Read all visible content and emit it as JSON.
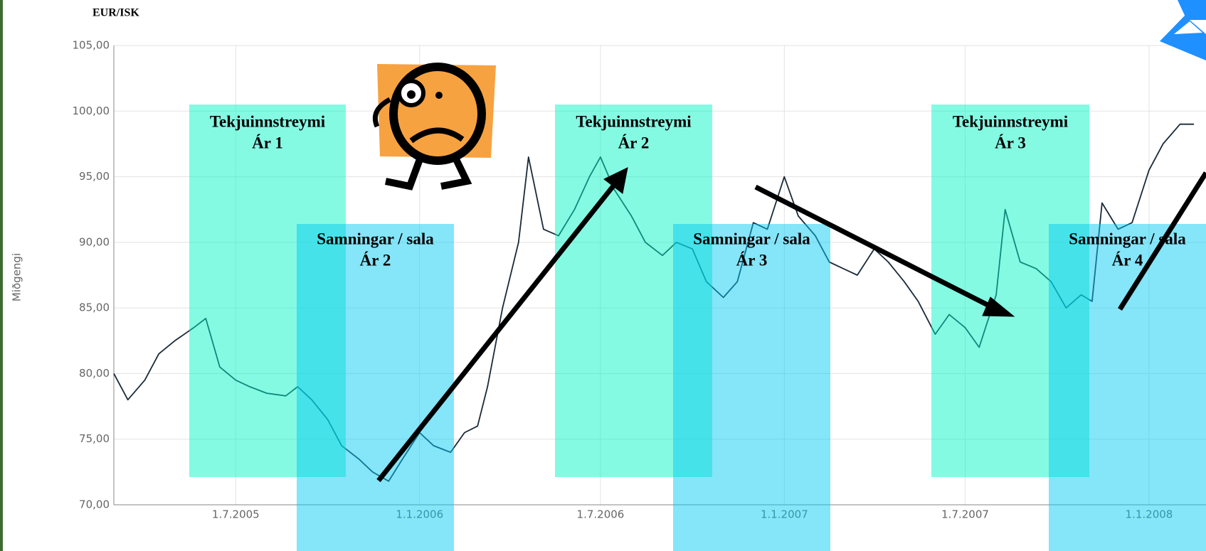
{
  "chart_data": {
    "type": "line",
    "title": "EUR/ISK",
    "y_label": "Miðgengi",
    "color": "#1a2a38",
    "x": [
      "2005-03-01",
      "2005-03-15",
      "2005-04-01",
      "2005-04-15",
      "2005-05-01",
      "2005-05-20",
      "2005-06-01",
      "2005-06-15",
      "2005-07-01",
      "2005-07-15",
      "2005-08-01",
      "2005-08-20",
      "2005-09-01",
      "2005-09-15",
      "2005-10-01",
      "2005-10-15",
      "2005-11-01",
      "2005-11-15",
      "2005-12-01",
      "2005-12-15",
      "2006-01-01",
      "2006-01-15",
      "2006-02-01",
      "2006-02-15",
      "2006-02-28",
      "2006-03-10",
      "2006-03-25",
      "2006-04-10",
      "2006-04-20",
      "2006-05-05",
      "2006-05-20",
      "2006-06-05",
      "2006-06-20",
      "2006-07-01",
      "2006-07-15",
      "2006-08-01",
      "2006-08-15",
      "2006-09-01",
      "2006-09-15",
      "2006-10-01",
      "2006-10-15",
      "2006-11-01",
      "2006-11-15",
      "2006-12-01",
      "2006-12-15",
      "2007-01-01",
      "2007-01-15",
      "2007-02-01",
      "2007-02-15",
      "2007-03-01",
      "2007-03-15",
      "2007-04-01",
      "2007-04-15",
      "2007-05-01",
      "2007-05-15",
      "2007-06-01",
      "2007-06-15",
      "2007-07-01",
      "2007-07-15",
      "2007-08-01",
      "2007-08-10",
      "2007-08-25",
      "2007-09-10",
      "2007-09-25",
      "2007-10-10",
      "2007-10-25",
      "2007-11-05",
      "2007-11-15",
      "2007-12-01",
      "2007-12-15",
      "2008-01-01",
      "2008-01-15",
      "2008-02-01",
      "2008-02-15"
    ],
    "values": [
      80.0,
      78.0,
      79.5,
      81.5,
      82.5,
      83.5,
      84.2,
      80.5,
      79.5,
      79.0,
      78.5,
      78.3,
      79.0,
      78.0,
      76.5,
      74.5,
      73.5,
      72.5,
      71.8,
      73.5,
      75.5,
      74.5,
      74.0,
      75.5,
      76.0,
      79.0,
      85.0,
      90.0,
      96.5,
      91.0,
      90.5,
      92.5,
      95.0,
      96.5,
      94.0,
      92.0,
      90.0,
      89.0,
      90.0,
      89.5,
      87.0,
      85.8,
      87.0,
      91.5,
      91.0,
      95.0,
      92.0,
      90.5,
      88.5,
      88.0,
      87.5,
      89.5,
      88.5,
      87.0,
      85.5,
      83.0,
      84.5,
      83.5,
      82.0,
      86.0,
      92.5,
      88.5,
      88.0,
      87.0,
      85.0,
      86.0,
      85.5,
      93.0,
      91.0,
      91.5,
      95.5,
      97.5,
      99.0,
      99.0
    ],
    "xlim": [
      "2005-03-01",
      "2008-02-27"
    ],
    "xticks": [
      {
        "value": "2005-07-01",
        "label": "1.7.2005"
      },
      {
        "value": "2006-01-01",
        "label": "1.1.2006"
      },
      {
        "value": "2006-07-01",
        "label": "1.7.2006"
      },
      {
        "value": "2007-01-01",
        "label": "1.1.2007"
      },
      {
        "value": "2007-07-01",
        "label": "1.7.2007"
      },
      {
        "value": "2008-01-01",
        "label": "1.1.2008"
      }
    ],
    "ylim": [
      70,
      105
    ],
    "yticks": [
      {
        "value": 70,
        "label": "70,00"
      },
      {
        "value": 75,
        "label": "75,00"
      },
      {
        "value": 80,
        "label": "80,00"
      },
      {
        "value": 85,
        "label": "85,00"
      },
      {
        "value": 90,
        "label": "90,00"
      },
      {
        "value": 95,
        "label": "95,00"
      },
      {
        "value": 100,
        "label": "100,00"
      },
      {
        "value": 105,
        "label": "105,00"
      }
    ],
    "grid": true,
    "annotations": [
      {
        "kind": "income",
        "lines": [
          "Tekjuinnstreymi",
          "Ár 1"
        ]
      },
      {
        "kind": "sales",
        "lines": [
          "Samningar / sala",
          "Ár 2"
        ]
      },
      {
        "kind": "income",
        "lines": [
          "Tekjuinnstreymi",
          "Ár 2"
        ]
      },
      {
        "kind": "sales",
        "lines": [
          "Samningar / sala",
          "Ár 3"
        ]
      },
      {
        "kind": "income",
        "lines": [
          "Tekjuinnstreymi",
          "Ár 3"
        ]
      },
      {
        "kind": "sales",
        "lines": [
          "Samningar / sala",
          "Ár 4"
        ]
      }
    ]
  }
}
